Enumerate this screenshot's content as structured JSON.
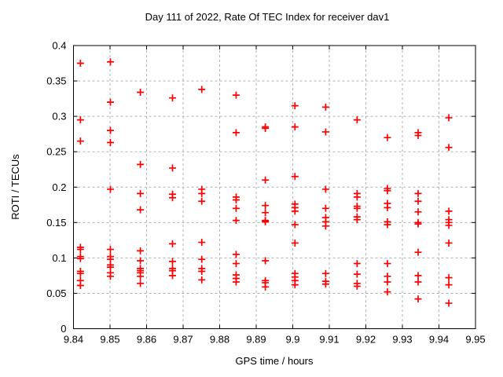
{
  "title": "Day 111 of 2022, Rate Of TEC Index for receiver dav1",
  "colors": {
    "marker": "#ff0000",
    "grid": "#b0b0b0",
    "axis": "#000000",
    "background": "#ffffff",
    "text": "#000000"
  },
  "chart_data": {
    "type": "scatter",
    "title": "Day 111 of 2022, Rate Of TEC Index for receiver dav1",
    "xlabel": "GPS time / hours",
    "ylabel": "ROTI / TECUs",
    "xlim": [
      9.84,
      9.95
    ],
    "ylim": [
      0,
      0.4
    ],
    "grid": true,
    "legend": "none",
    "marker": "plus",
    "marker_color": "#ff0000",
    "x_ticks": {
      "values": [
        9.84,
        9.85,
        9.86,
        9.87,
        9.88,
        9.89,
        9.9,
        9.91,
        9.92,
        9.93,
        9.94,
        9.95
      ],
      "labels": [
        "9.84",
        "9.85",
        "9.86",
        "9.87",
        "9.88",
        "9.89",
        "9.9",
        "9.91",
        "9.92",
        "9.93",
        "9.94",
        "9.95"
      ]
    },
    "y_ticks": {
      "values": [
        0,
        0.05,
        0.1,
        0.15,
        0.2,
        0.25,
        0.3,
        0.35,
        0.4
      ],
      "labels": [
        "0",
        "0.05",
        "0.1",
        "0.15",
        "0.2",
        "0.25",
        "0.3",
        "0.35",
        "0.4"
      ]
    },
    "series": [
      {
        "name": "ROTI",
        "columns": [
          {
            "x": 9.8419,
            "y": [
              0.375,
              0.295,
              0.265,
              0.115,
              0.112,
              0.102,
              0.099,
              0.081,
              0.078,
              0.068,
              0.061
            ]
          },
          {
            "x": 9.8501,
            "y": [
              0.377,
              0.32,
              0.28,
              0.263,
              0.197,
              0.112,
              0.102,
              0.098,
              0.09,
              0.087,
              0.079,
              0.074
            ]
          },
          {
            "x": 9.8583,
            "y": [
              0.334,
              0.232,
              0.191,
              0.168,
              0.11,
              0.096,
              0.085,
              0.082,
              0.079,
              0.074,
              0.064
            ]
          },
          {
            "x": 9.8671,
            "y": [
              0.326,
              0.227,
              0.19,
              0.185,
              0.12,
              0.095,
              0.085,
              0.082,
              0.075
            ]
          },
          {
            "x": 9.8751,
            "y": [
              0.338,
              0.197,
              0.191,
              0.18,
              0.122,
              0.098,
              0.085,
              0.081,
              0.069
            ]
          },
          {
            "x": 9.8845,
            "y": [
              0.33,
              0.277,
              0.186,
              0.182,
              0.17,
              0.153,
              0.105,
              0.092,
              0.076,
              0.071,
              0.066
            ]
          },
          {
            "x": 9.8925,
            "y": [
              0.285,
              0.283,
              0.21,
              0.174,
              0.164,
              0.153,
              0.151,
              0.096,
              0.068,
              0.065,
              0.059
            ]
          },
          {
            "x": 9.9006,
            "y": [
              0.315,
              0.285,
              0.215,
              0.176,
              0.171,
              0.166,
              0.147,
              0.121,
              0.078,
              0.073,
              0.068,
              0.062
            ]
          },
          {
            "x": 9.909,
            "y": [
              0.313,
              0.278,
              0.197,
              0.17,
              0.157,
              0.151,
              0.145,
              0.078,
              0.067,
              0.063
            ]
          },
          {
            "x": 9.9176,
            "y": [
              0.295,
              0.191,
              0.186,
              0.173,
              0.17,
              0.158,
              0.154,
              0.092,
              0.077,
              0.064,
              0.06
            ]
          },
          {
            "x": 9.9259,
            "y": [
              0.27,
              0.198,
              0.195,
              0.177,
              0.171,
              0.151,
              0.147,
              0.092,
              0.074,
              0.066,
              0.052
            ]
          },
          {
            "x": 9.9343,
            "y": [
              0.277,
              0.273,
              0.191,
              0.18,
              0.165,
              0.15,
              0.148,
              0.108,
              0.075,
              0.066,
              0.042
            ]
          },
          {
            "x": 9.9427,
            "y": [
              0.298,
              0.256,
              0.166,
              0.154,
              0.15,
              0.146,
              0.121,
              0.072,
              0.062,
              0.036
            ]
          }
        ]
      }
    ]
  }
}
